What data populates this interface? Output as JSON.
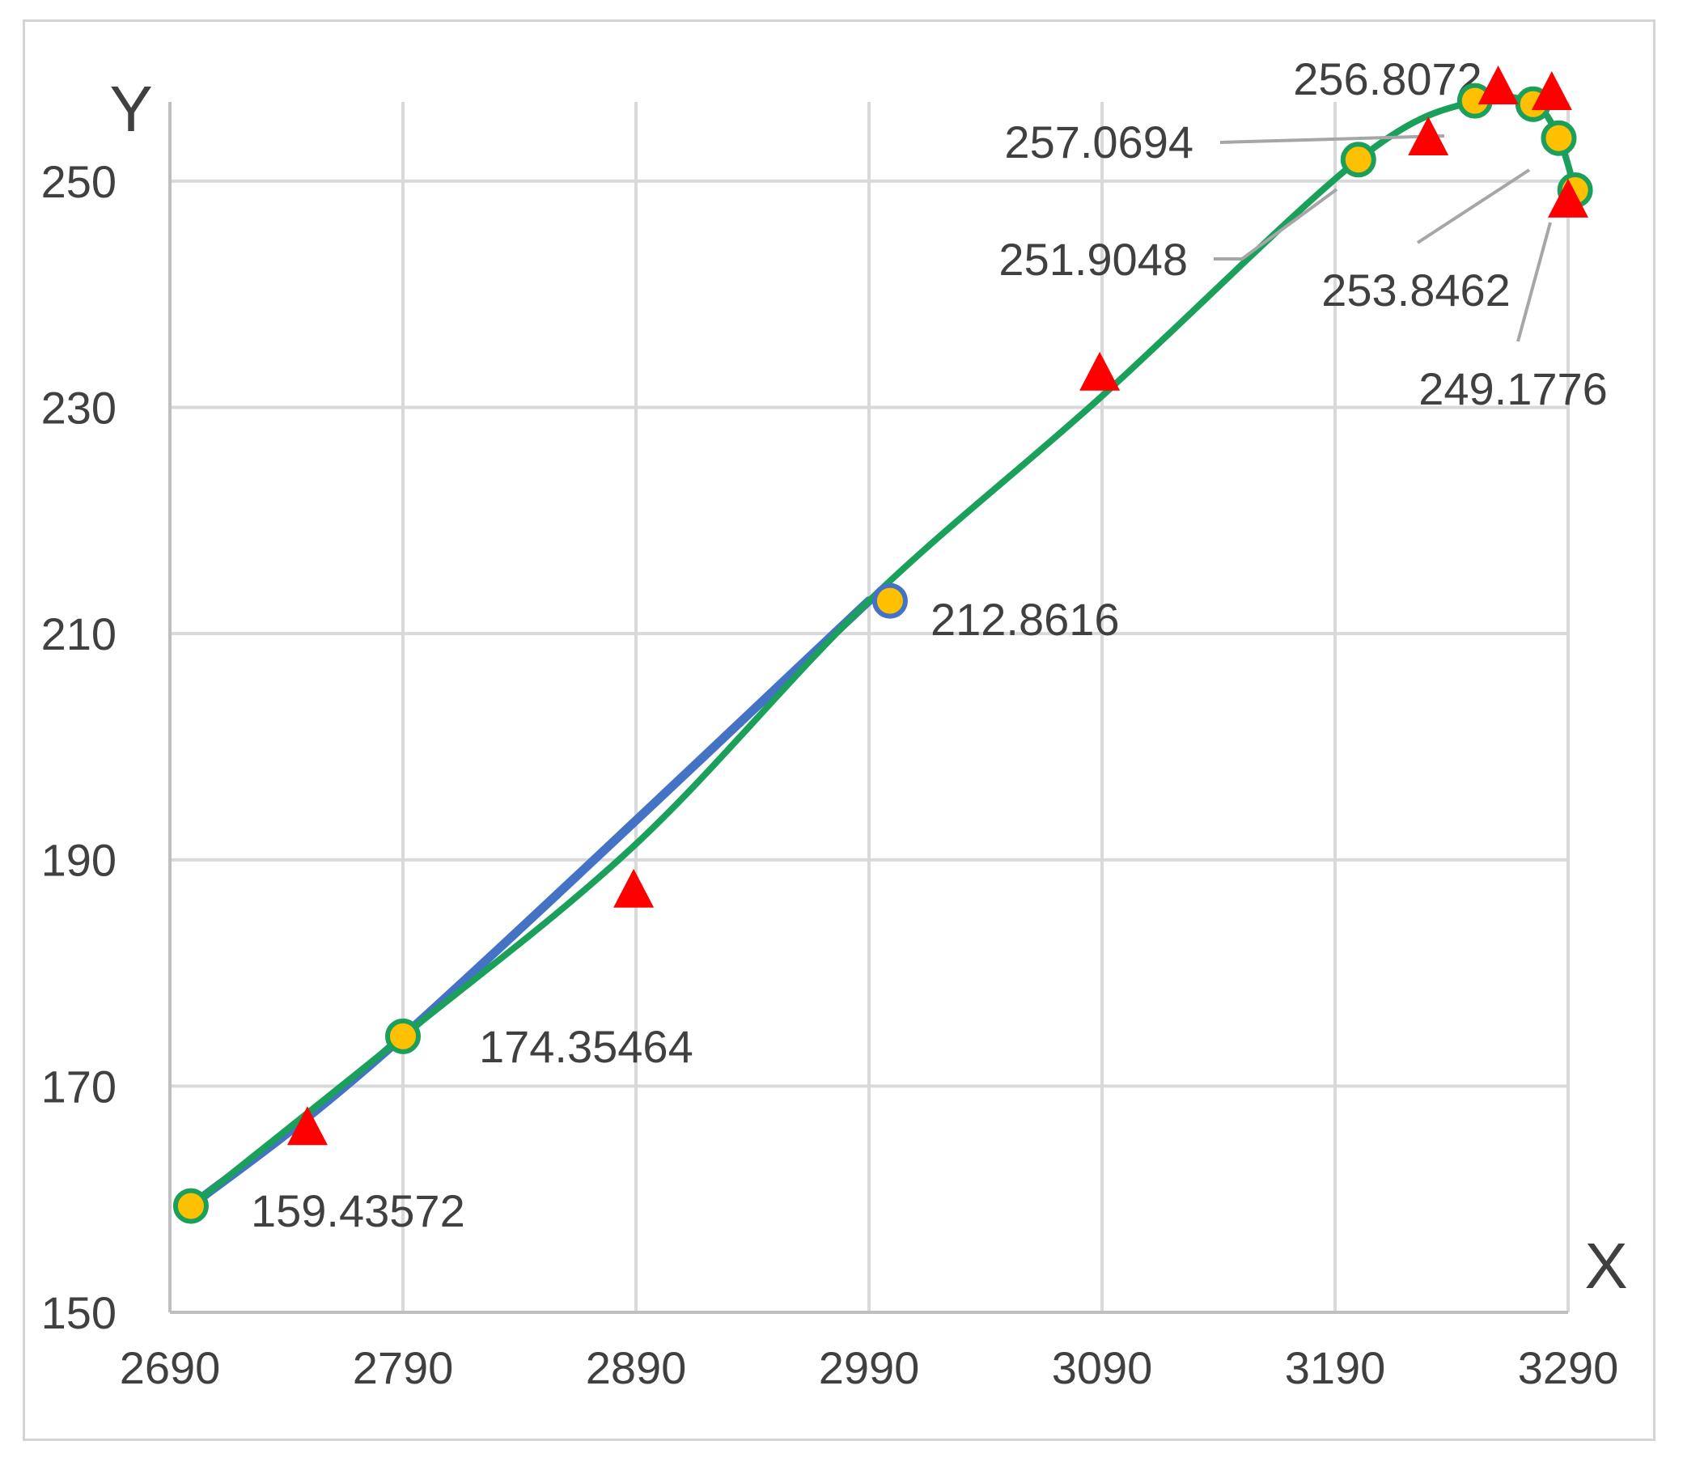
{
  "chart_data": {
    "type": "scatter",
    "xlabel": "X",
    "ylabel": "Y",
    "xlim": [
      2690,
      3290
    ],
    "ylim": [
      150,
      257
    ],
    "x_ticks": [
      2690,
      2790,
      2890,
      2990,
      3090,
      3190,
      3290
    ],
    "y_ticks": [
      150,
      170,
      190,
      210,
      230,
      250
    ],
    "grid": true,
    "legend": "none",
    "series": [
      {
        "style": "smooth-line",
        "color": "#4472c4",
        "points": [
          {
            "x": 2699,
            "y": 159.4
          },
          {
            "x": 2790,
            "y": 174.4
          },
          {
            "x": 2990,
            "y": 212.9
          }
        ]
      },
      {
        "style": "smooth-line",
        "color": "#1aa05a",
        "points": [
          {
            "x": 2699,
            "y": 159.4
          },
          {
            "x": 2790,
            "y": 174.4
          },
          {
            "x": 2890,
            "y": 191.4
          },
          {
            "x": 2990,
            "y": 212.9
          },
          {
            "x": 3090,
            "y": 231.0
          },
          {
            "x": 3200,
            "y": 251.9
          },
          {
            "x": 3250,
            "y": 257.1
          },
          {
            "x": 3275,
            "y": 256.8
          },
          {
            "x": 3286,
            "y": 253.8
          },
          {
            "x": 3293,
            "y": 249.2
          }
        ]
      },
      {
        "style": "markers",
        "marker": "circle",
        "fill": "#ffc000",
        "stroke": "#1aa05a",
        "points": [
          {
            "x": 2699,
            "y": 159.4
          },
          {
            "x": 2790,
            "y": 174.4
          },
          {
            "x": 3200,
            "y": 251.9
          },
          {
            "x": 3250,
            "y": 257.1
          },
          {
            "x": 3275,
            "y": 256.8
          },
          {
            "x": 3286,
            "y": 253.8
          },
          {
            "x": 3293,
            "y": 249.2
          }
        ]
      },
      {
        "style": "markers",
        "marker": "circle",
        "fill": "#ffc000",
        "stroke": "#4472c4",
        "points": [
          {
            "x": 2999,
            "y": 212.9
          }
        ]
      },
      {
        "style": "markers",
        "marker": "triangle",
        "fill": "#ff0000",
        "points": [
          {
            "x": 2749,
            "y": 166.5
          },
          {
            "x": 2889,
            "y": 187.5
          },
          {
            "x": 3089,
            "y": 233.2
          },
          {
            "x": 3230,
            "y": 254.0
          },
          {
            "x": 3260,
            "y": 258.5
          },
          {
            "x": 3283,
            "y": 258.0
          },
          {
            "x": 3290,
            "y": 248.5
          }
        ]
      }
    ],
    "annotations": [
      {
        "text": "159.43572",
        "x": 2699,
        "y": 159.4,
        "leader": false
      },
      {
        "text": "174.35464",
        "x": 2790,
        "y": 174.4,
        "leader": false
      },
      {
        "text": "212.8616",
        "x": 2999,
        "y": 212.9,
        "leader": false
      },
      {
        "text": "251.9048",
        "x": 3200,
        "y": 251.9,
        "leader": true
      },
      {
        "text": "257.0694",
        "x": 3250,
        "y": 257.1,
        "leader": true
      },
      {
        "text": "256.8072",
        "x": 3275,
        "y": 256.8,
        "leader": false
      },
      {
        "text": "253.8462",
        "x": 3286,
        "y": 253.8,
        "leader": true
      },
      {
        "text": "249.1776",
        "x": 3293,
        "y": 249.2,
        "leader": true
      }
    ]
  }
}
